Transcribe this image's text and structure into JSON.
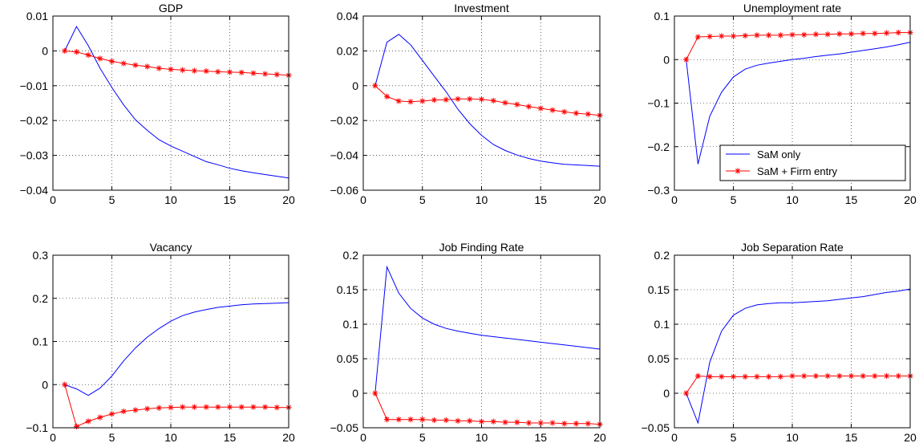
{
  "chart_data": [
    {
      "type": "line",
      "title": "GDP",
      "xlabel": "",
      "ylabel": "",
      "xlim": [
        0,
        20
      ],
      "ylim": [
        -0.04,
        0.01
      ],
      "xticks": [
        0,
        5,
        10,
        15,
        20
      ],
      "yticks": [
        -0.04,
        -0.03,
        -0.02,
        -0.01,
        0,
        0.01
      ],
      "xtick_labels": [
        "0",
        "5",
        "10",
        "15",
        "20"
      ],
      "ytick_labels": [
        "−0.04",
        "−0.03",
        "−0.02",
        "−0.01",
        "0",
        "0.01"
      ],
      "grid": true,
      "x": [
        1,
        2,
        3,
        4,
        5,
        6,
        7,
        8,
        9,
        10,
        11,
        12,
        13,
        14,
        15,
        16,
        17,
        18,
        19,
        20
      ],
      "series": [
        {
          "name": "SaM only",
          "color": "#0000ff",
          "marker": "none",
          "values": [
            0,
            0.007,
            0.0015,
            -0.005,
            -0.0105,
            -0.0155,
            -0.0198,
            -0.0228,
            -0.0255,
            -0.0273,
            -0.0288,
            -0.0303,
            -0.0318,
            -0.0327,
            -0.0337,
            -0.0344,
            -0.035,
            -0.0355,
            -0.036,
            -0.0365
          ]
        },
        {
          "name": "SaM + Firm entry",
          "color": "#ff0000",
          "marker": "star",
          "values": [
            0,
            -0.0003,
            -0.0012,
            -0.0022,
            -0.003,
            -0.0036,
            -0.0041,
            -0.0045,
            -0.005,
            -0.0053,
            -0.0055,
            -0.0057,
            -0.0058,
            -0.006,
            -0.0061,
            -0.0062,
            -0.0064,
            -0.0066,
            -0.0068,
            -0.007
          ]
        }
      ]
    },
    {
      "type": "line",
      "title": "Investment",
      "xlabel": "",
      "ylabel": "",
      "xlim": [
        0,
        20
      ],
      "ylim": [
        -0.06,
        0.04
      ],
      "xticks": [
        0,
        5,
        10,
        15,
        20
      ],
      "yticks": [
        -0.06,
        -0.04,
        -0.02,
        0,
        0.02,
        0.04
      ],
      "xtick_labels": [
        "0",
        "5",
        "10",
        "15",
        "20"
      ],
      "ytick_labels": [
        "−0.06",
        "−0.04",
        "−0.02",
        "0",
        "0.02",
        "0.04"
      ],
      "grid": true,
      "x": [
        1,
        2,
        3,
        4,
        5,
        6,
        7,
        8,
        9,
        10,
        11,
        12,
        13,
        14,
        15,
        16,
        17,
        18,
        19,
        20
      ],
      "series": [
        {
          "name": "SaM only",
          "color": "#0000ff",
          "marker": "none",
          "values": [
            0,
            0.025,
            0.0295,
            0.0235,
            0.0145,
            0.0055,
            -0.0035,
            -0.0135,
            -0.0218,
            -0.0285,
            -0.0338,
            -0.0372,
            -0.0398,
            -0.0418,
            -0.0433,
            -0.0443,
            -0.0451,
            -0.0455,
            -0.0458,
            -0.0462
          ]
        },
        {
          "name": "SaM + Firm entry",
          "color": "#ff0000",
          "marker": "star",
          "values": [
            0,
            -0.0062,
            -0.0088,
            -0.0092,
            -0.0088,
            -0.0082,
            -0.008,
            -0.0076,
            -0.0076,
            -0.0078,
            -0.0086,
            -0.0098,
            -0.0108,
            -0.012,
            -0.013,
            -0.014,
            -0.015,
            -0.0158,
            -0.0163,
            -0.017
          ]
        }
      ]
    },
    {
      "type": "line",
      "title": "Unemployment rate",
      "xlabel": "",
      "ylabel": "",
      "xlim": [
        0,
        20
      ],
      "ylim": [
        -0.3,
        0.1
      ],
      "xticks": [
        0,
        5,
        10,
        15,
        20
      ],
      "yticks": [
        -0.3,
        -0.2,
        -0.1,
        0,
        0.1
      ],
      "xtick_labels": [
        "0",
        "5",
        "10",
        "15",
        "20"
      ],
      "ytick_labels": [
        "−0.3",
        "−0.2",
        "−0.1",
        "0",
        "0.1"
      ],
      "grid": true,
      "legend": {
        "placement": "bottom-right",
        "entries": [
          "SaM only",
          "SaM + Firm entry"
        ]
      },
      "x": [
        1,
        2,
        3,
        4,
        5,
        6,
        7,
        8,
        9,
        10,
        11,
        12,
        13,
        14,
        15,
        16,
        17,
        18,
        19,
        20
      ],
      "series": [
        {
          "name": "SaM only",
          "color": "#0000ff",
          "marker": "none",
          "values": [
            0,
            -0.24,
            -0.13,
            -0.075,
            -0.04,
            -0.022,
            -0.013,
            -0.008,
            -0.004,
            0,
            0.003,
            0.007,
            0.01,
            0.013,
            0.017,
            0.021,
            0.025,
            0.029,
            0.034,
            0.04
          ]
        },
        {
          "name": "SaM + Firm entry",
          "color": "#ff0000",
          "marker": "star",
          "values": [
            0,
            0.052,
            0.053,
            0.054,
            0.054,
            0.055,
            0.056,
            0.056,
            0.056,
            0.057,
            0.057,
            0.058,
            0.058,
            0.059,
            0.059,
            0.06,
            0.06,
            0.061,
            0.062,
            0.062
          ]
        }
      ]
    },
    {
      "type": "line",
      "title": "Vacancy",
      "xlabel": "",
      "ylabel": "",
      "xlim": [
        0,
        20
      ],
      "ylim": [
        -0.1,
        0.3
      ],
      "xticks": [
        0,
        5,
        10,
        15,
        20
      ],
      "yticks": [
        -0.1,
        0,
        0.1,
        0.2,
        0.3
      ],
      "xtick_labels": [
        "0",
        "5",
        "10",
        "15",
        "20"
      ],
      "ytick_labels": [
        "−0.1",
        "0",
        "0.1",
        "0.2",
        "0.3"
      ],
      "grid": true,
      "x": [
        1,
        2,
        3,
        4,
        5,
        6,
        7,
        8,
        9,
        10,
        11,
        12,
        13,
        14,
        15,
        16,
        17,
        18,
        19,
        20
      ],
      "series": [
        {
          "name": "SaM only",
          "color": "#0000ff",
          "marker": "none",
          "values": [
            0,
            -0.01,
            -0.025,
            -0.008,
            0.02,
            0.055,
            0.085,
            0.11,
            0.13,
            0.147,
            0.16,
            0.168,
            0.174,
            0.179,
            0.182,
            0.185,
            0.187,
            0.188,
            0.189,
            0.19
          ]
        },
        {
          "name": "SaM + Firm entry",
          "color": "#ff0000",
          "marker": "star",
          "values": [
            0,
            -0.097,
            -0.085,
            -0.076,
            -0.068,
            -0.062,
            -0.059,
            -0.056,
            -0.054,
            -0.053,
            -0.052,
            -0.052,
            -0.052,
            -0.052,
            -0.052,
            -0.052,
            -0.052,
            -0.052,
            -0.053,
            -0.053
          ]
        }
      ]
    },
    {
      "type": "line",
      "title": "Job Finding Rate",
      "xlabel": "",
      "ylabel": "",
      "xlim": [
        0,
        20
      ],
      "ylim": [
        -0.05,
        0.2
      ],
      "xticks": [
        0,
        5,
        10,
        15,
        20
      ],
      "yticks": [
        -0.05,
        0,
        0.05,
        0.1,
        0.15,
        0.2
      ],
      "xtick_labels": [
        "0",
        "5",
        "10",
        "15",
        "20"
      ],
      "ytick_labels": [
        "−0.05",
        "0",
        "0.05",
        "0.1",
        "0.15",
        "0.2"
      ],
      "grid": true,
      "x": [
        1,
        2,
        3,
        4,
        5,
        6,
        7,
        8,
        9,
        10,
        11,
        12,
        13,
        14,
        15,
        16,
        17,
        18,
        19,
        20
      ],
      "series": [
        {
          "name": "SaM only",
          "color": "#0000ff",
          "marker": "none",
          "values": [
            0,
            0.183,
            0.145,
            0.123,
            0.109,
            0.1,
            0.094,
            0.09,
            0.087,
            0.084,
            0.082,
            0.08,
            0.078,
            0.076,
            0.074,
            0.072,
            0.07,
            0.068,
            0.066,
            0.064
          ]
        },
        {
          "name": "SaM + Firm entry",
          "color": "#ff0000",
          "marker": "star",
          "values": [
            0,
            -0.038,
            -0.038,
            -0.038,
            -0.038,
            -0.039,
            -0.039,
            -0.04,
            -0.04,
            -0.041,
            -0.041,
            -0.042,
            -0.042,
            -0.043,
            -0.043,
            -0.043,
            -0.044,
            -0.044,
            -0.044,
            -0.045
          ]
        }
      ]
    },
    {
      "type": "line",
      "title": "Job Separation Rate",
      "xlabel": "",
      "ylabel": "",
      "xlim": [
        0,
        20
      ],
      "ylim": [
        -0.05,
        0.2
      ],
      "xticks": [
        0,
        5,
        10,
        15,
        20
      ],
      "yticks": [
        -0.05,
        0,
        0.05,
        0.1,
        0.15,
        0.2
      ],
      "xtick_labels": [
        "0",
        "5",
        "10",
        "15",
        "20"
      ],
      "ytick_labels": [
        "−0.05",
        "0",
        "0.05",
        "0.1",
        "0.15",
        "0.2"
      ],
      "grid": true,
      "x": [
        1,
        2,
        3,
        4,
        5,
        6,
        7,
        8,
        9,
        10,
        11,
        12,
        13,
        14,
        15,
        16,
        17,
        18,
        19,
        20
      ],
      "series": [
        {
          "name": "SaM only",
          "color": "#0000ff",
          "marker": "none",
          "values": [
            0,
            -0.043,
            0.045,
            0.09,
            0.113,
            0.123,
            0.128,
            0.13,
            0.131,
            0.131,
            0.132,
            0.133,
            0.134,
            0.136,
            0.138,
            0.14,
            0.143,
            0.146,
            0.148,
            0.151
          ]
        },
        {
          "name": "SaM + Firm entry",
          "color": "#ff0000",
          "marker": "star",
          "values": [
            0,
            0.025,
            0.024,
            0.024,
            0.024,
            0.024,
            0.024,
            0.024,
            0.024,
            0.025,
            0.025,
            0.025,
            0.025,
            0.025,
            0.025,
            0.025,
            0.025,
            0.025,
            0.025,
            0.025
          ]
        }
      ]
    }
  ]
}
